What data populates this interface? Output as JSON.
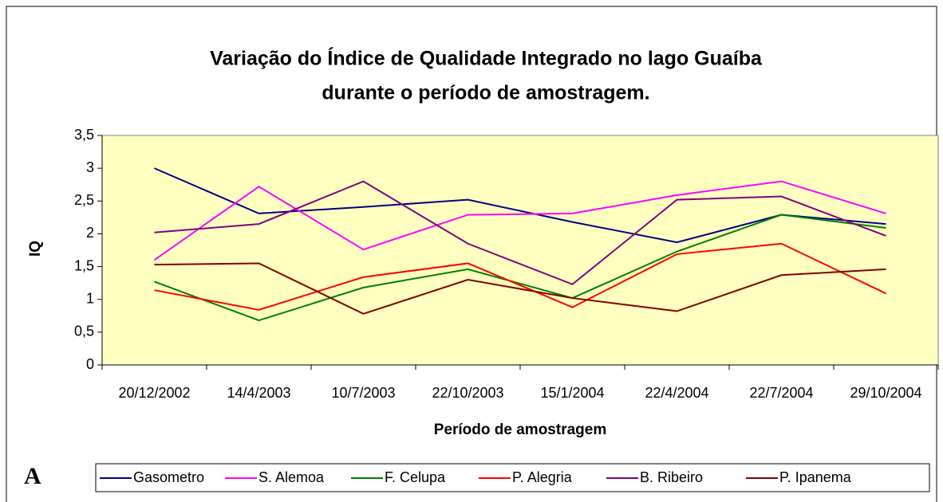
{
  "chart_data": {
    "type": "line",
    "title": [
      "Variação do Índice de Qualidade Integrado no lago Guaíba",
      "durante o período de amostragem."
    ],
    "x_label": "Período de amostragem",
    "y_label": "IQ",
    "annotation": "A",
    "categories": [
      "20/12/2002",
      "14/4/2003",
      "10/7/2003",
      "22/10/2003",
      "15/1/2004",
      "22/4/2004",
      "22/7/2004",
      "29/10/2004"
    ],
    "series": [
      {
        "name": "Gasometro",
        "color": "#000080",
        "values": [
          3.0,
          2.31,
          2.41,
          2.52,
          2.18,
          1.87,
          2.29,
          2.15
        ]
      },
      {
        "name": "S. Alemoa",
        "color": "#ff00ff",
        "values": [
          1.6,
          2.72,
          1.76,
          2.29,
          2.31,
          2.59,
          2.8,
          2.31
        ]
      },
      {
        "name": "F. Celupa",
        "color": "#008000",
        "values": [
          1.27,
          0.68,
          1.18,
          1.46,
          1.02,
          1.73,
          2.29,
          2.09
        ]
      },
      {
        "name": "P. Alegria",
        "color": "#ff0000",
        "values": [
          1.14,
          0.84,
          1.34,
          1.55,
          0.88,
          1.69,
          1.85,
          1.09
        ]
      },
      {
        "name": "B. Ribeiro",
        "color": "#800080",
        "values": [
          2.02,
          2.15,
          2.8,
          1.85,
          1.23,
          2.52,
          2.57,
          1.97
        ]
      },
      {
        "name": "P. Ipanema",
        "color": "#800000",
        "values": [
          1.53,
          1.55,
          0.78,
          1.3,
          1.02,
          0.82,
          1.37,
          1.46
        ]
      }
    ],
    "ylim": [
      0,
      3.5
    ],
    "yticks": [
      0,
      {
        "value": 0.5,
        "label": "0,5"
      },
      1,
      {
        "value": 1.5,
        "label": "1,5"
      },
      2,
      {
        "value": 2.5,
        "label": "2,5"
      },
      3,
      {
        "value": 3.5,
        "label": "3,5"
      }
    ],
    "plot_background": "#ffffc0",
    "legend": "bottom"
  }
}
